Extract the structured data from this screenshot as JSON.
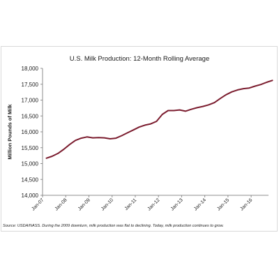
{
  "chart_data": {
    "type": "line",
    "title": "U.S. Milk Production: 12-Month Rolling Average",
    "xlabel": "",
    "ylabel": "Million Pounds of Milk",
    "ylim": [
      14000,
      18000
    ],
    "yticks": [
      "14,000",
      "14,500",
      "15,000",
      "15,500",
      "16,000",
      "16,500",
      "17,000",
      "17,500",
      "18,000"
    ],
    "xtick_labels": [
      "Jan-07",
      "Jan-08",
      "Jan-09",
      "Jan-10",
      "Jan-11",
      "Jan-12",
      "Jan-13",
      "Jan-14",
      "Jan-15",
      "Jan-16"
    ],
    "grid": false,
    "line_color": "#7b1c2e",
    "series": [
      {
        "x": [
          "Jan-07",
          "Apr-07",
          "Jul-07",
          "Oct-07",
          "Jan-08",
          "Apr-08",
          "Jul-08",
          "Oct-08",
          "Jan-09",
          "Apr-09",
          "Jul-09",
          "Oct-09",
          "Jan-10",
          "Apr-10",
          "Jul-10",
          "Oct-10",
          "Jan-11",
          "Apr-11",
          "Jul-11",
          "Oct-11",
          "Jan-12",
          "Apr-12",
          "Jul-12",
          "Oct-12",
          "Jan-13",
          "Apr-13",
          "Jul-13",
          "Oct-13",
          "Jan-14",
          "Apr-14",
          "Jul-14",
          "Oct-14",
          "Jan-15",
          "Apr-15",
          "Jul-15",
          "Oct-15",
          "Jan-16",
          "Apr-16",
          "Jul-16",
          "Oct-16"
        ],
        "values": [
          15170,
          15230,
          15320,
          15450,
          15600,
          15730,
          15800,
          15840,
          15810,
          15820,
          15810,
          15780,
          15800,
          15880,
          15970,
          16060,
          16150,
          16210,
          16250,
          16330,
          16550,
          16670,
          16670,
          16690,
          16650,
          16710,
          16760,
          16800,
          16850,
          16920,
          17050,
          17170,
          17260,
          17320,
          17360,
          17380,
          17440,
          17490,
          17560,
          17620
        ]
      }
    ]
  },
  "source_note": "Source: USDA/NASS. During the 2009 downturn, milk production was flat to declining. Today, milk production continues to grow."
}
